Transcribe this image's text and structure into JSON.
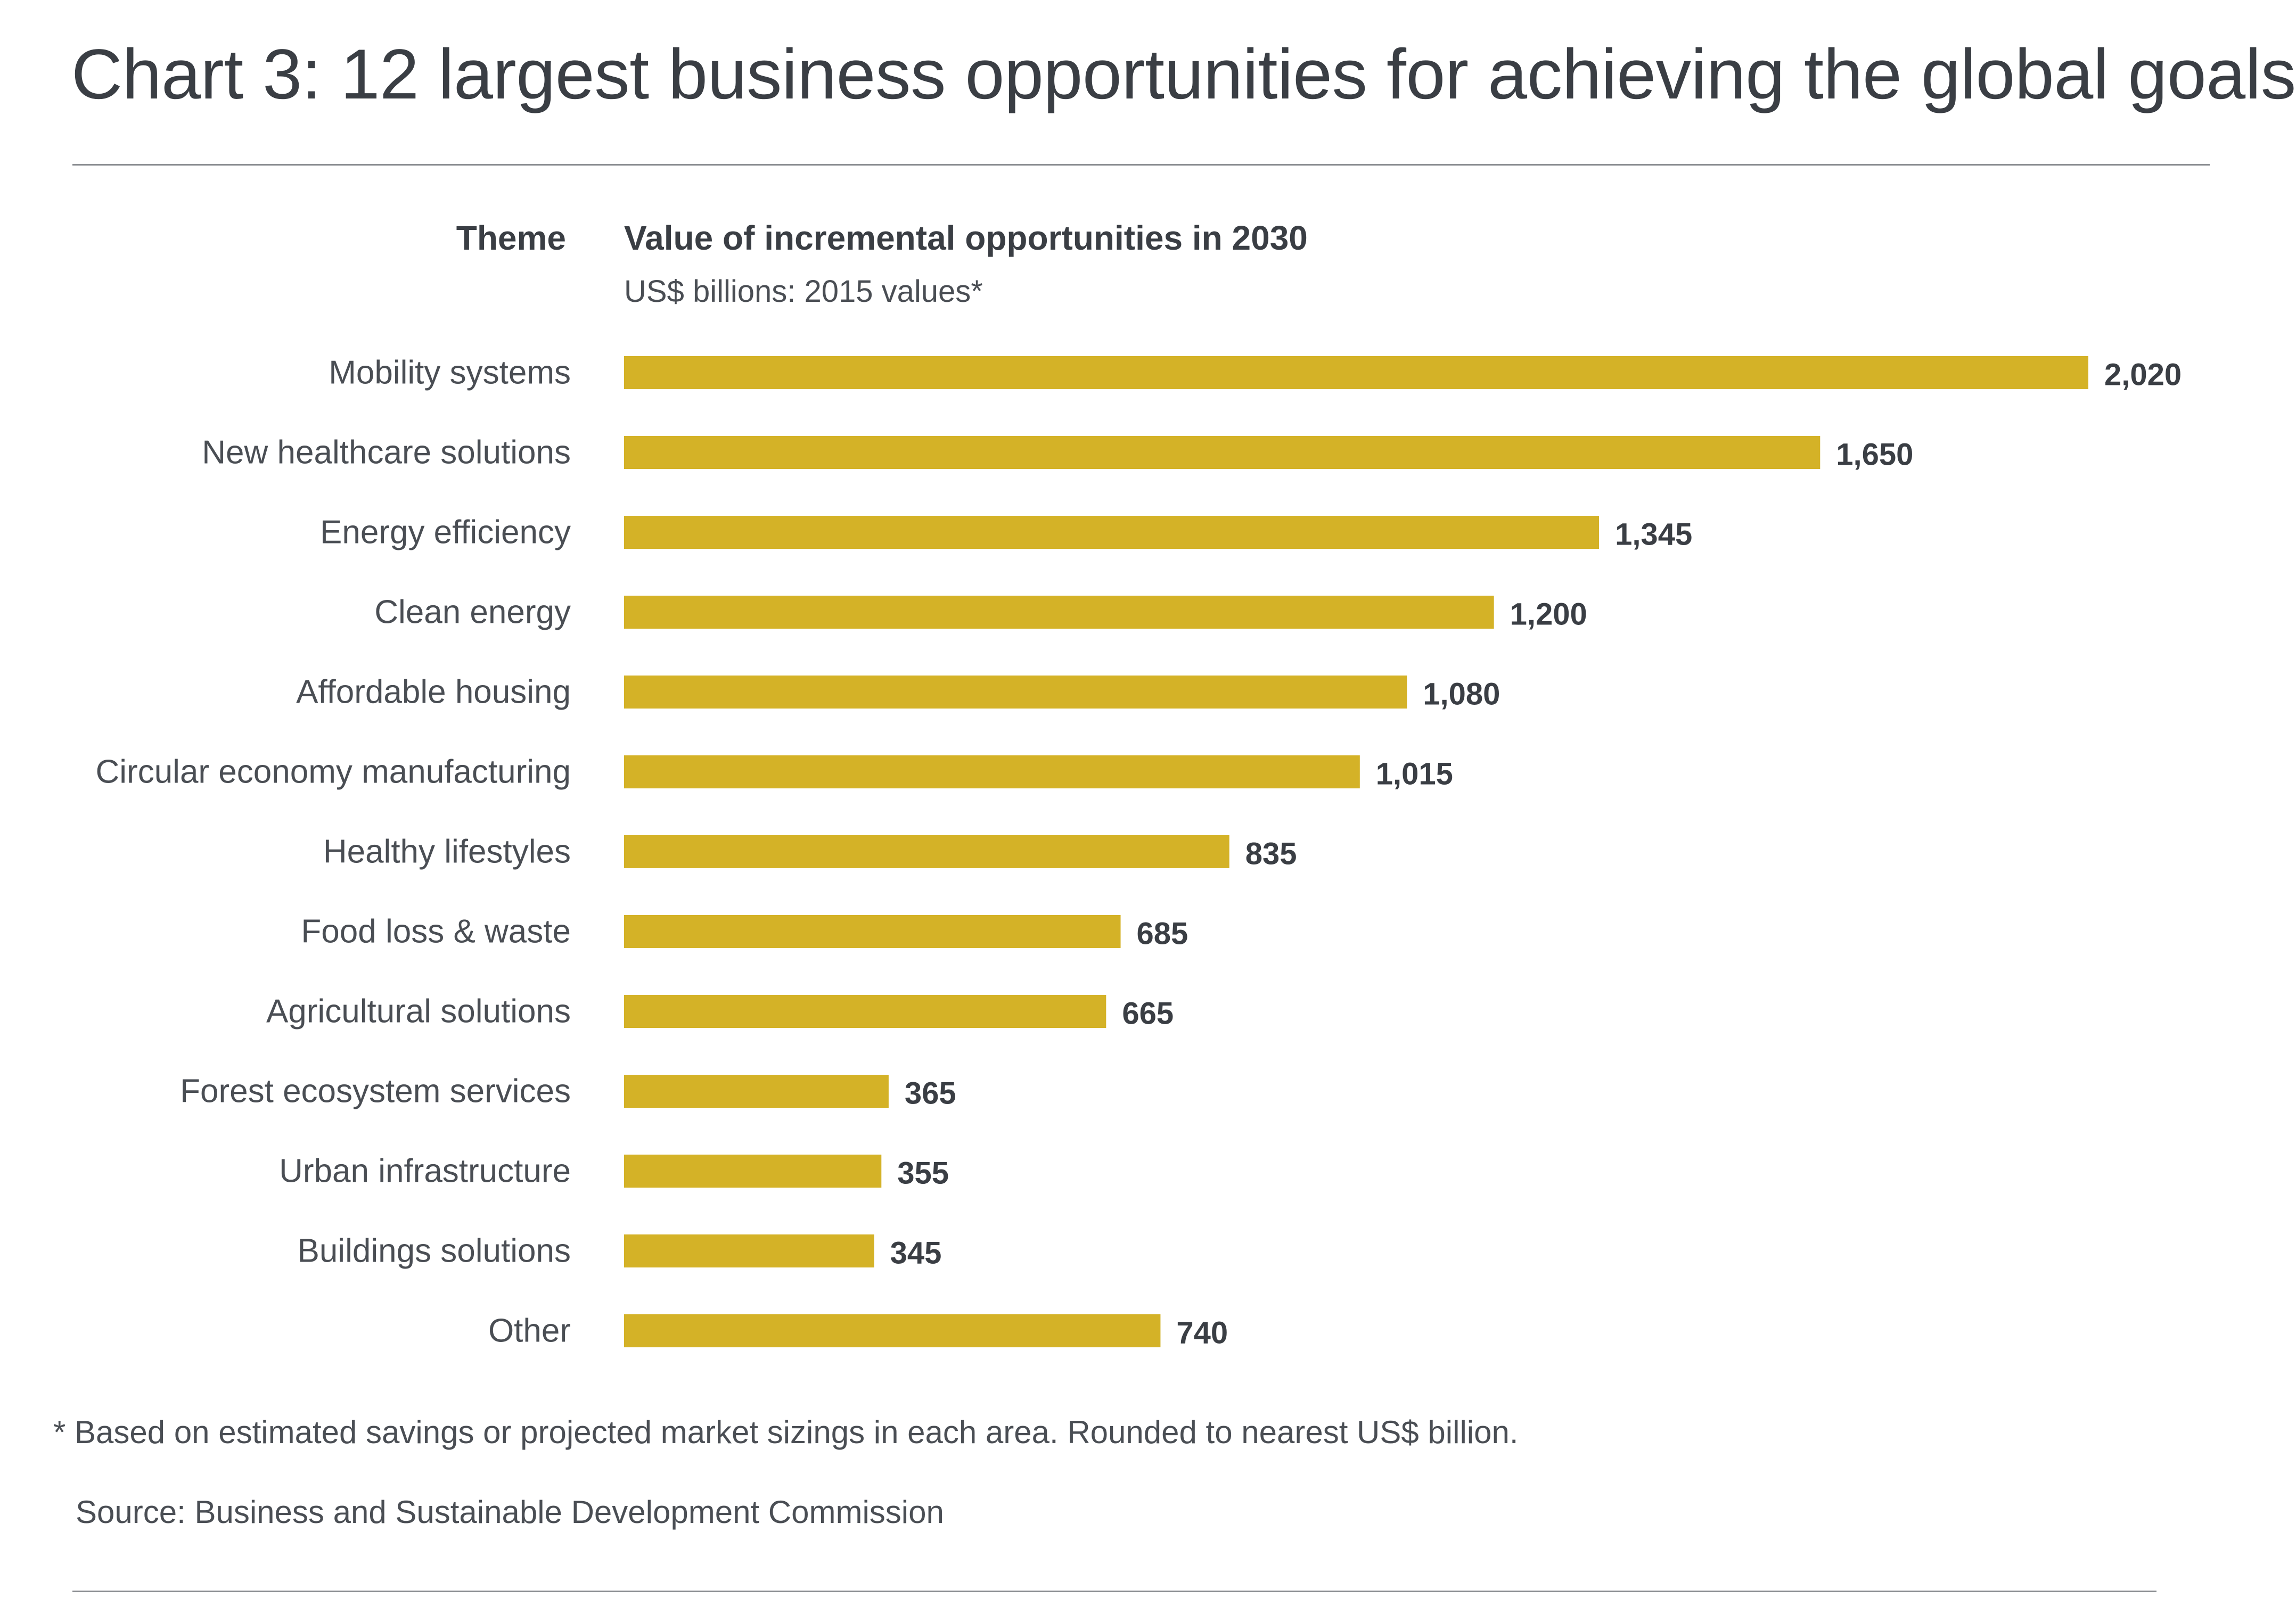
{
  "title": "Chart 3: 12 largest business opportunities for achieving the global goals",
  "column_headers": {
    "theme": "Theme",
    "value": "Value of incremental opportunities in 2030",
    "units": "US$ billions: 2015 values*"
  },
  "footnote": "* Based on estimated savings or projected market sizings in each area. Rounded to nearest US$ billion.",
  "source": "Source: Business and Sustainable Development Commission",
  "colors": {
    "bar": "#d4b227",
    "text": "#3a3e44",
    "rule": "#8a8d91"
  },
  "chart_data": {
    "type": "bar",
    "orientation": "horizontal",
    "title": "Chart 3: 12 largest business opportunities for achieving the global goals",
    "xlabel": "Value of incremental opportunities in 2030",
    "ylabel": "Theme",
    "units": "US$ billions: 2015 values*",
    "categories": [
      "Mobility systems",
      "New healthcare solutions",
      "Energy efficiency",
      "Clean energy",
      "Affordable housing",
      "Circular economy manufacturing",
      "Healthy lifestyles",
      "Food loss & waste",
      "Agricultural solutions",
      "Forest ecosystem services",
      "Urban infrastructure",
      "Buildings solutions",
      "Other"
    ],
    "values": [
      2020,
      1650,
      1345,
      1200,
      1080,
      1015,
      835,
      685,
      665,
      365,
      355,
      345,
      740
    ],
    "value_labels": [
      "2,020",
      "1,650",
      "1,345",
      "1,200",
      "1,080",
      "1,015",
      "835",
      "685",
      "665",
      "365",
      "355",
      "345",
      "740"
    ],
    "xlim": [
      0,
      2020
    ],
    "grid": false,
    "legend": "none"
  }
}
